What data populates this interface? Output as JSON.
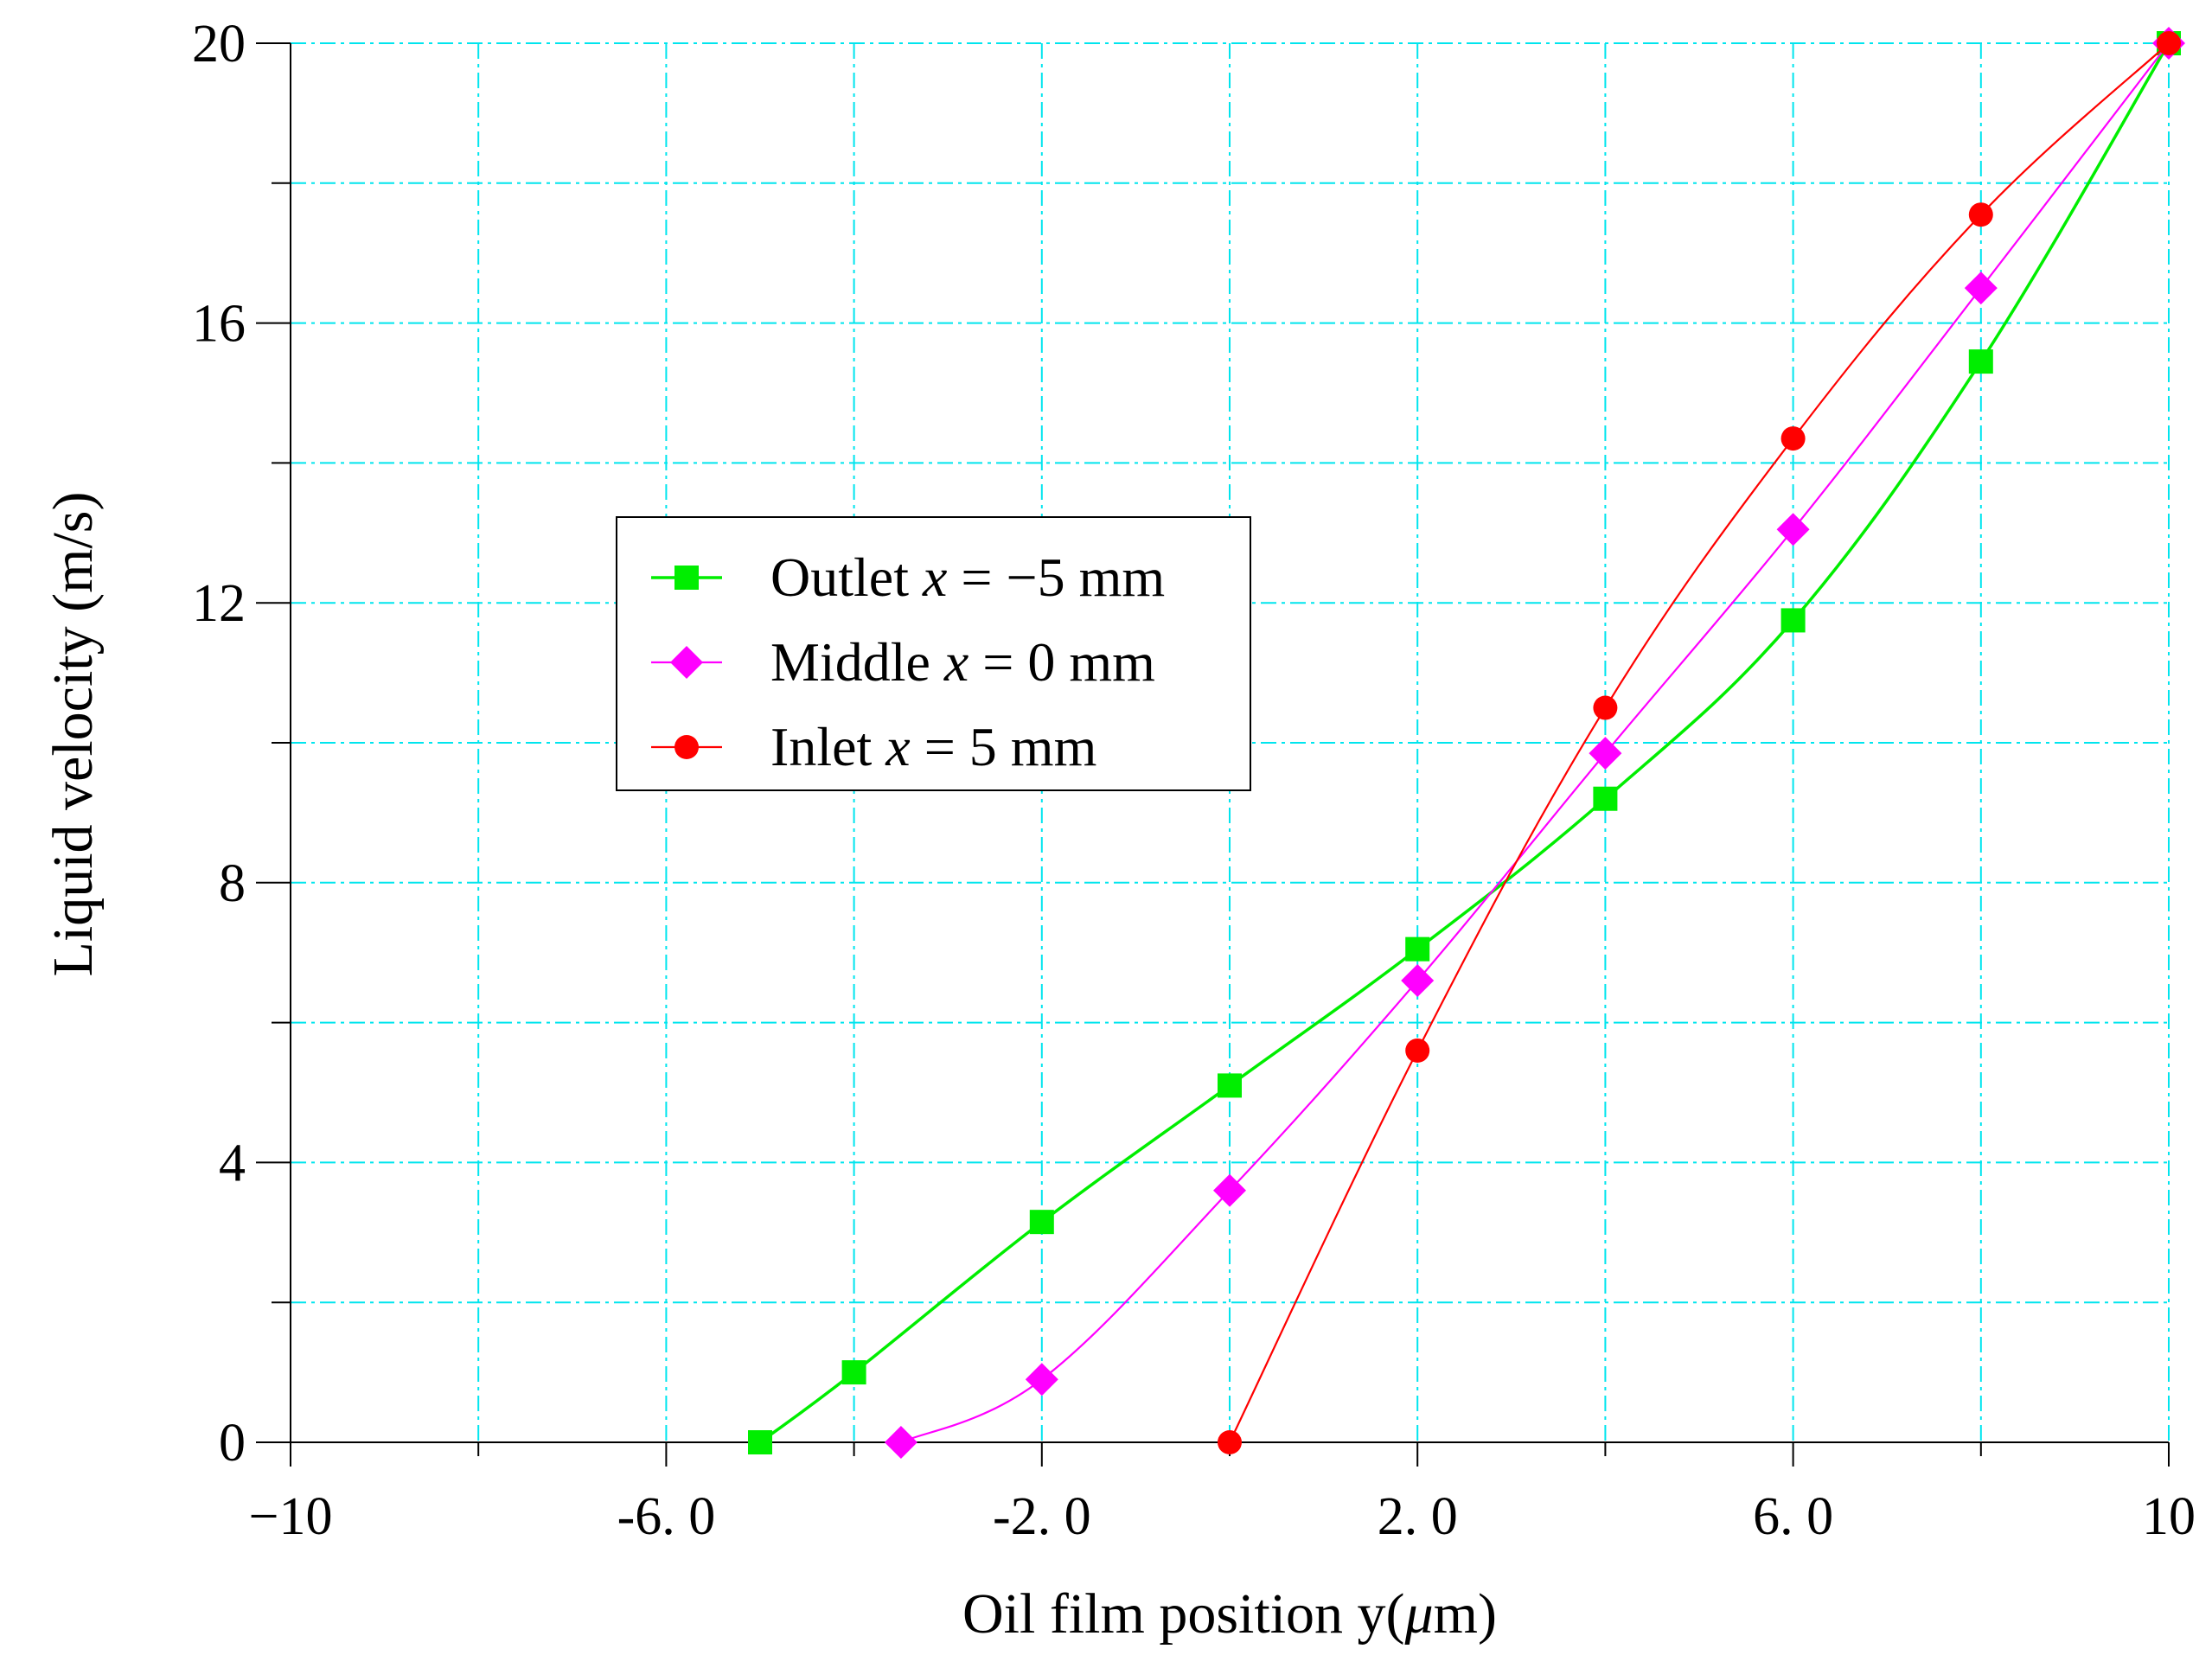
{
  "chart_data": {
    "type": "line",
    "title": "",
    "xlabel": "Oil film position y(μm)",
    "xlabel_parts": [
      "Oil film position y(",
      "μ",
      "m)"
    ],
    "ylabel": "Liquid velocity (m/s)",
    "xlim": [
      -10,
      10
    ],
    "ylim": [
      0,
      20
    ],
    "xtick_values": [
      -10,
      -6,
      -2,
      2,
      6,
      10
    ],
    "xtick_labels": [
      "−10",
      "-6. 0",
      "-2. 0",
      "2. 0",
      "6. 0",
      "10"
    ],
    "ytick_values": [
      0,
      4,
      8,
      12,
      16,
      20
    ],
    "ytick_labels": [
      "0",
      "4",
      "8",
      "12",
      "16",
      "20"
    ],
    "grid": true,
    "legend_position": "center-left",
    "series": [
      {
        "name": "Outlet x = −5 mm",
        "label_parts": [
          "Outlet ",
          "x",
          " = −5 mm"
        ],
        "color": "#00ee00",
        "marker": "square",
        "x": [
          -5,
          -4,
          -2,
          0,
          2,
          4,
          6,
          8,
          10
        ],
        "y": [
          0,
          1.0,
          3.15,
          5.1,
          7.05,
          9.2,
          11.75,
          15.45,
          20
        ]
      },
      {
        "name": "Middle x =  0 mm",
        "label_parts": [
          "Middle ",
          "x",
          " =  0 mm"
        ],
        "color": "#ff00ff",
        "marker": "diamond",
        "x": [
          -3.5,
          -2,
          0,
          2,
          4,
          6,
          8,
          10
        ],
        "y": [
          0,
          0.9,
          3.6,
          6.6,
          9.85,
          13.05,
          16.5,
          20
        ]
      },
      {
        "name": "Inlet x = 5 mm",
        "label_parts": [
          "Inlet ",
          "x",
          " = 5 mm"
        ],
        "color": "#ff0000",
        "marker": "circle",
        "x": [
          0,
          2,
          4,
          6,
          8,
          10
        ],
        "y": [
          0,
          5.6,
          10.5,
          14.35,
          17.55,
          20
        ]
      }
    ],
    "colors": {
      "grid": "#00e5ee",
      "axis": "#000000"
    }
  }
}
